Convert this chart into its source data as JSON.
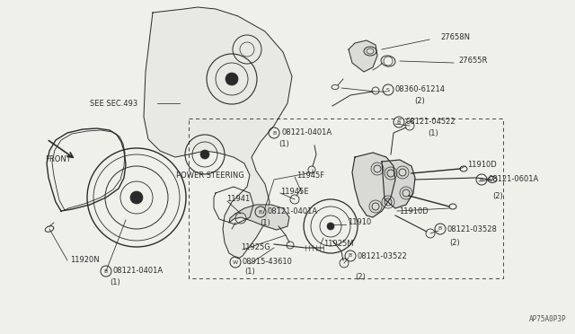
{
  "bg_color": "#f0f0eb",
  "line_color": "#2a2a2a",
  "watermark": "AP75A0P3P",
  "fig_w": 6.4,
  "fig_h": 3.72,
  "dpi": 100,
  "labels_simple": [
    [
      "27658N",
      490,
      42
    ],
    [
      "27655R",
      510,
      68
    ],
    [
      "(2)",
      461,
      112
    ],
    [
      "(1)",
      476,
      148
    ],
    [
      "11910D",
      520,
      183
    ],
    [
      "(2)",
      548,
      218
    ],
    [
      "11910D",
      444,
      236
    ],
    [
      "(2)",
      500,
      270
    ],
    [
      "11910",
      387,
      248
    ],
    [
      "11925M",
      360,
      272
    ],
    [
      "(2)",
      395,
      308
    ],
    [
      "11945F",
      330,
      195
    ],
    [
      "11945E",
      312,
      213
    ],
    [
      "11941",
      252,
      222
    ],
    [
      "11925G",
      268,
      276
    ],
    [
      "(1)",
      272,
      303
    ],
    [
      "POWER STEERING",
      196,
      196
    ],
    [
      "(1)",
      289,
      248
    ],
    [
      "11920N",
      78,
      290
    ],
    [
      "(1)",
      122,
      315
    ],
    [
      "(1)",
      310,
      160
    ],
    [
      "SEE SEC.493",
      100,
      115
    ],
    [
      "FRONT",
      50,
      178
    ]
  ],
  "labels_circle": [
    [
      "S",
      "08360-61214",
      432,
      100
    ],
    [
      "B",
      "08121-04522",
      444,
      136
    ],
    [
      "B",
      "08121-0601A",
      536,
      200
    ],
    [
      "B",
      "08121-03528",
      490,
      255
    ],
    [
      "B",
      "08121-03522",
      390,
      285
    ],
    [
      "W",
      "08915-43610",
      262,
      292
    ],
    [
      "B",
      "08121-0401A",
      290,
      236
    ],
    [
      "B",
      "08121-0401A",
      118,
      302
    ],
    [
      "B",
      "08121-0401A",
      305,
      148
    ]
  ]
}
